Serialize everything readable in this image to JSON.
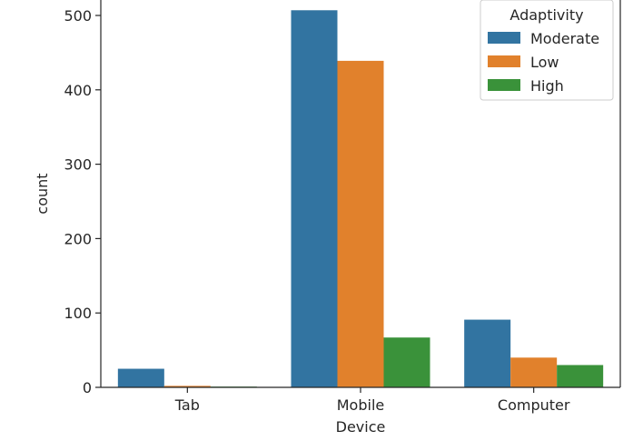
{
  "chart_data": {
    "type": "bar",
    "xlabel": "Device",
    "ylabel": "count",
    "categories": [
      "Tab",
      "Mobile",
      "Computer"
    ],
    "series": [
      {
        "name": "Moderate",
        "values": [
          25,
          507,
          91
        ]
      },
      {
        "name": "Low",
        "values": [
          2,
          439,
          40
        ]
      },
      {
        "name": "High",
        "values": [
          1,
          67,
          30
        ]
      }
    ],
    "yticks": [
      0,
      100,
      200,
      300,
      400,
      500
    ],
    "ylim": [
      0,
      532
    ],
    "grid": false,
    "legend": {
      "title": "Adaptivity",
      "position": "top-right"
    },
    "colors": [
      "#3274a1",
      "#e1812c",
      "#3a923a"
    ]
  }
}
